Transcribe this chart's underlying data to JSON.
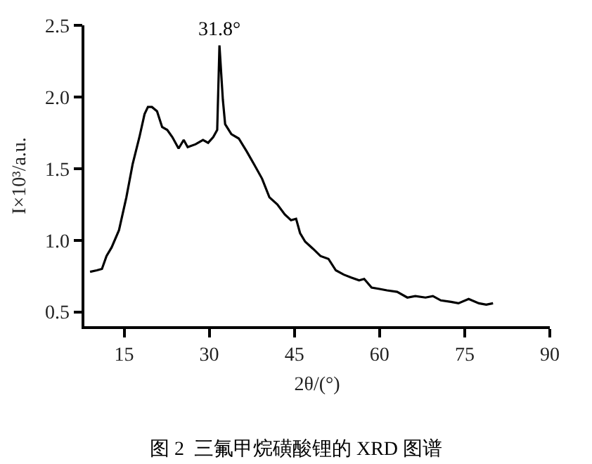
{
  "chart_data": {
    "type": "line",
    "title": "图 2  三氟甲烷磺酸锂的 XRD 图谱",
    "xlabel": "2θ/(°)",
    "ylabel": "I×10³/a.u.",
    "x": [
      9.0,
      10.2,
      11.1,
      11.9,
      12.8,
      14.1,
      15.4,
      16.5,
      17.7,
      18.6,
      19.2,
      19.9,
      20.8,
      21.7,
      22.6,
      23.5,
      24.6,
      25.5,
      26.2,
      27.6,
      28.9,
      29.8,
      30.7,
      31.4,
      31.8,
      32.4,
      32.8,
      33.9,
      35.2,
      36.6,
      37.9,
      39.3,
      40.6,
      42.0,
      43.3,
      44.4,
      45.3,
      46.0,
      46.9,
      48.3,
      49.6,
      51.0,
      52.3,
      53.7,
      55.0,
      56.4,
      57.3,
      58.6,
      60.0,
      61.3,
      63.1,
      64.9,
      66.3,
      68.1,
      69.4,
      70.8,
      72.6,
      73.9,
      75.7,
      77.5,
      78.8,
      80.0
    ],
    "series": [
      {
        "color": "#000000",
        "values": [
          0.78,
          0.79,
          0.8,
          0.89,
          0.95,
          1.07,
          1.3,
          1.53,
          1.72,
          1.88,
          1.93,
          1.93,
          1.9,
          1.79,
          1.77,
          1.72,
          1.64,
          1.7,
          1.65,
          1.67,
          1.7,
          1.68,
          1.72,
          1.77,
          2.36,
          1.98,
          1.81,
          1.74,
          1.71,
          1.62,
          1.53,
          1.43,
          1.3,
          1.25,
          1.18,
          1.14,
          1.15,
          1.05,
          0.99,
          0.94,
          0.89,
          0.87,
          0.79,
          0.76,
          0.74,
          0.72,
          0.73,
          0.67,
          0.66,
          0.65,
          0.64,
          0.6,
          0.61,
          0.6,
          0.61,
          0.58,
          0.57,
          0.56,
          0.59,
          0.56,
          0.55,
          0.56
        ]
      }
    ],
    "annotations": [
      {
        "text": "31.8°",
        "x": 31.8,
        "y": 2.36
      }
    ],
    "xlim": [
      8,
      90
    ],
    "xticks": [
      15,
      30,
      45,
      60,
      75,
      90
    ],
    "ylim": [
      0.4,
      2.5
    ],
    "yticks": [
      {
        "value": 0.5,
        "label": "0.5"
      },
      {
        "value": 1.0,
        "label": "1.0"
      },
      {
        "value": 1.5,
        "label": "1.5"
      },
      {
        "value": 2.0,
        "label": "2.0"
      },
      {
        "value": 2.5,
        "label": "2.5"
      }
    ],
    "marker": "none",
    "line_style": "solid"
  }
}
